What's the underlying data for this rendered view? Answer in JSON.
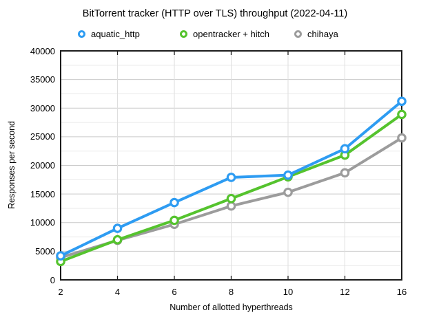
{
  "chart_data": {
    "type": "line",
    "title": "BitTorrent tracker (HTTP over TLS) throughput (2022-04-11)",
    "xlabel": "Number of allotted hyperthreads",
    "ylabel": "Responses per second",
    "x_categories": [
      2,
      4,
      6,
      8,
      10,
      12,
      16
    ],
    "ylim": [
      0,
      40000
    ],
    "ytick_step": 5000,
    "minor_ytick_step": 2500,
    "grid": true,
    "legend_position": "top",
    "series": [
      {
        "name": "aquatic_http",
        "color": "#2e9cf2",
        "values": [
          4200,
          9000,
          13500,
          17900,
          18300,
          22900,
          31200
        ]
      },
      {
        "name": "opentracker + hitch",
        "color": "#55c32e",
        "values": [
          3200,
          7000,
          10400,
          14200,
          18000,
          21800,
          28900
        ]
      },
      {
        "name": "chihaya",
        "color": "#9c9c9c",
        "values": [
          3900,
          6900,
          9700,
          12900,
          15300,
          18700,
          24800
        ]
      }
    ],
    "colors": {
      "frame": "#1c1c1c",
      "major_grid": "#c9c9c9",
      "minor_grid": "#e9e9e9",
      "vertical_grid": "#dedede",
      "marker_fill": "#ffffff"
    }
  }
}
